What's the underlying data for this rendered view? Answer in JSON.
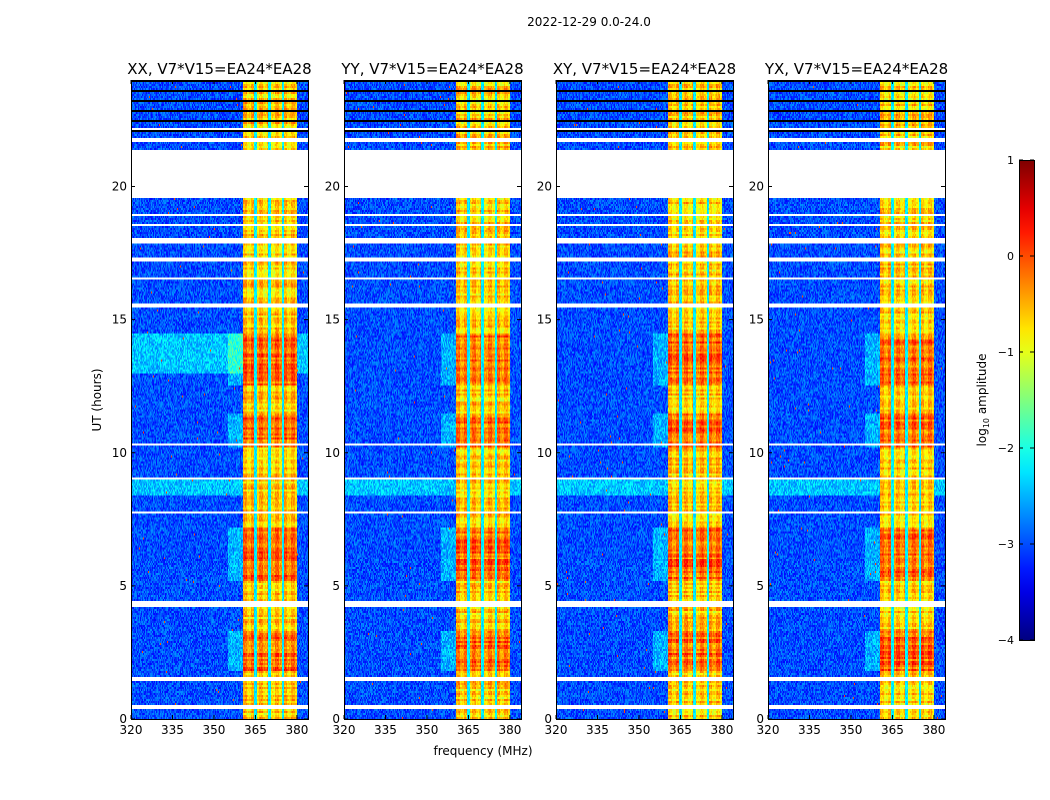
{
  "chart_data": {
    "type": "heatmap",
    "title": "2022-12-29 0.0-24.0",
    "xlabel": "frequency (MHz)",
    "ylabel": "UT (hours)",
    "xlim": [
      320,
      384
    ],
    "ylim": [
      0,
      24
    ],
    "xticks": [
      "320",
      "335",
      "350",
      "365",
      "380"
    ],
    "yticks": [
      "0",
      "5",
      "10",
      "15",
      "20"
    ],
    "panels": [
      {
        "title": "XX, V7*V15=EA24*EA28"
      },
      {
        "title": "YY, V7*V15=EA24*EA28"
      },
      {
        "title": "XY, V7*V15=EA24*EA28"
      },
      {
        "title": "YX, V7*V15=EA24*EA28"
      }
    ],
    "colorbar": {
      "label_prefix": "log",
      "label_sub": "10",
      "label_suffix": " amplitude",
      "range": [
        -4,
        1
      ],
      "ticks": [
        "1",
        "0",
        "−1",
        "−2",
        "−3",
        "−4"
      ],
      "colormap": "jet"
    },
    "bright_band_mhz": [
      360.4,
      380
    ],
    "band_dark_channels_mhz": [
      365,
      370,
      375
    ],
    "background_log_amplitude": -3,
    "band_log_amplitude": -0.6,
    "strong_intervals_hours": [
      [
        1.8,
        3.3
      ],
      [
        10.2,
        11.5
      ],
      [
        12.5,
        14.5
      ],
      [
        5.2,
        7.2
      ]
    ],
    "flagged_gaps_hours": [
      [
        19.6,
        21.4
      ],
      [
        0.35,
        0.55
      ],
      [
        1.45,
        1.55
      ],
      [
        4.2,
        4.45
      ],
      [
        7.7,
        7.8
      ],
      [
        9.0,
        9.05
      ],
      [
        10.25,
        10.35
      ],
      [
        11.6,
        11.65
      ],
      [
        15.45,
        15.6
      ],
      [
        16.7,
        16.75
      ],
      [
        17.2,
        17.3
      ],
      [
        17.85,
        18.1
      ],
      [
        18.9,
        18.95
      ],
      [
        21.7,
        21.8
      ],
      [
        22.1,
        22.2
      ]
    ]
  }
}
